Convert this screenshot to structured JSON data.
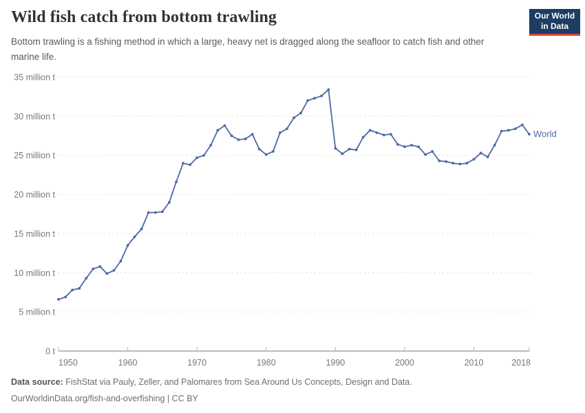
{
  "header": {
    "title": "Wild fish catch from bottom trawling",
    "subtitle": "Bottom trawling is a fishing method in which a large, heavy net is dragged along the seafloor to catch fish and other marine life.",
    "logo": {
      "line1": "Our World",
      "line2": "in Data",
      "bg_color": "#1d3d63",
      "accent_color": "#dc4538"
    }
  },
  "chart_data": {
    "type": "line",
    "title": "Wild fish catch from bottom trawling",
    "unit": "million t",
    "grid": "horizontal-dashed",
    "legend_position": "end-of-line",
    "xlim": [
      1950,
      2018
    ],
    "ylim": [
      0,
      35
    ],
    "x_ticks": [
      1950,
      1960,
      1970,
      1980,
      1990,
      2000,
      2010,
      2018
    ],
    "y_ticks": [
      {
        "value": 0,
        "label": "0 t"
      },
      {
        "value": 5,
        "label": "5 million t"
      },
      {
        "value": 10,
        "label": "10 million t"
      },
      {
        "value": 15,
        "label": "15 million t"
      },
      {
        "value": 20,
        "label": "20 million t"
      },
      {
        "value": 25,
        "label": "25 million t"
      },
      {
        "value": 30,
        "label": "30 million t"
      },
      {
        "value": 35,
        "label": "35 million t"
      }
    ],
    "x": [
      1950,
      1951,
      1952,
      1953,
      1954,
      1955,
      1956,
      1957,
      1958,
      1959,
      1960,
      1961,
      1962,
      1963,
      1964,
      1965,
      1966,
      1967,
      1968,
      1969,
      1970,
      1971,
      1972,
      1973,
      1974,
      1975,
      1976,
      1977,
      1978,
      1979,
      1980,
      1981,
      1982,
      1983,
      1984,
      1985,
      1986,
      1987,
      1988,
      1989,
      1990,
      1991,
      1992,
      1993,
      1994,
      1995,
      1996,
      1997,
      1998,
      1999,
      2000,
      2001,
      2002,
      2003,
      2004,
      2005,
      2006,
      2007,
      2008,
      2009,
      2010,
      2011,
      2012,
      2013,
      2014,
      2015,
      2016,
      2017,
      2018
    ],
    "series": [
      {
        "name": "World",
        "color": "#4b69a5",
        "values": [
          6.6,
          6.9,
          7.8,
          8.0,
          9.3,
          10.5,
          10.8,
          9.9,
          10.3,
          11.5,
          13.5,
          14.6,
          15.6,
          17.7,
          17.7,
          17.8,
          19.0,
          21.6,
          24.0,
          23.8,
          24.7,
          25.0,
          26.3,
          28.2,
          28.8,
          27.5,
          27.0,
          27.1,
          27.7,
          25.8,
          25.1,
          25.5,
          27.9,
          28.4,
          29.8,
          30.4,
          32.0,
          32.3,
          32.6,
          33.4,
          25.9,
          25.2,
          25.8,
          25.7,
          27.3,
          28.2,
          27.9,
          27.6,
          27.7,
          26.4,
          26.1,
          26.3,
          26.1,
          25.1,
          25.5,
          24.3,
          24.2,
          24.0,
          23.9,
          24.0,
          24.5,
          25.3,
          24.8,
          26.3,
          28.1,
          28.2,
          28.4,
          28.9,
          27.7
        ]
      }
    ]
  },
  "footer": {
    "source_label": "Data source:",
    "source_text": "FishStat via Pauly, Zeller, and Palomares from Sea Around Us Concepts, Design and Data.",
    "license_text": "OurWorldinData.org/fish-and-overfishing | CC BY"
  }
}
